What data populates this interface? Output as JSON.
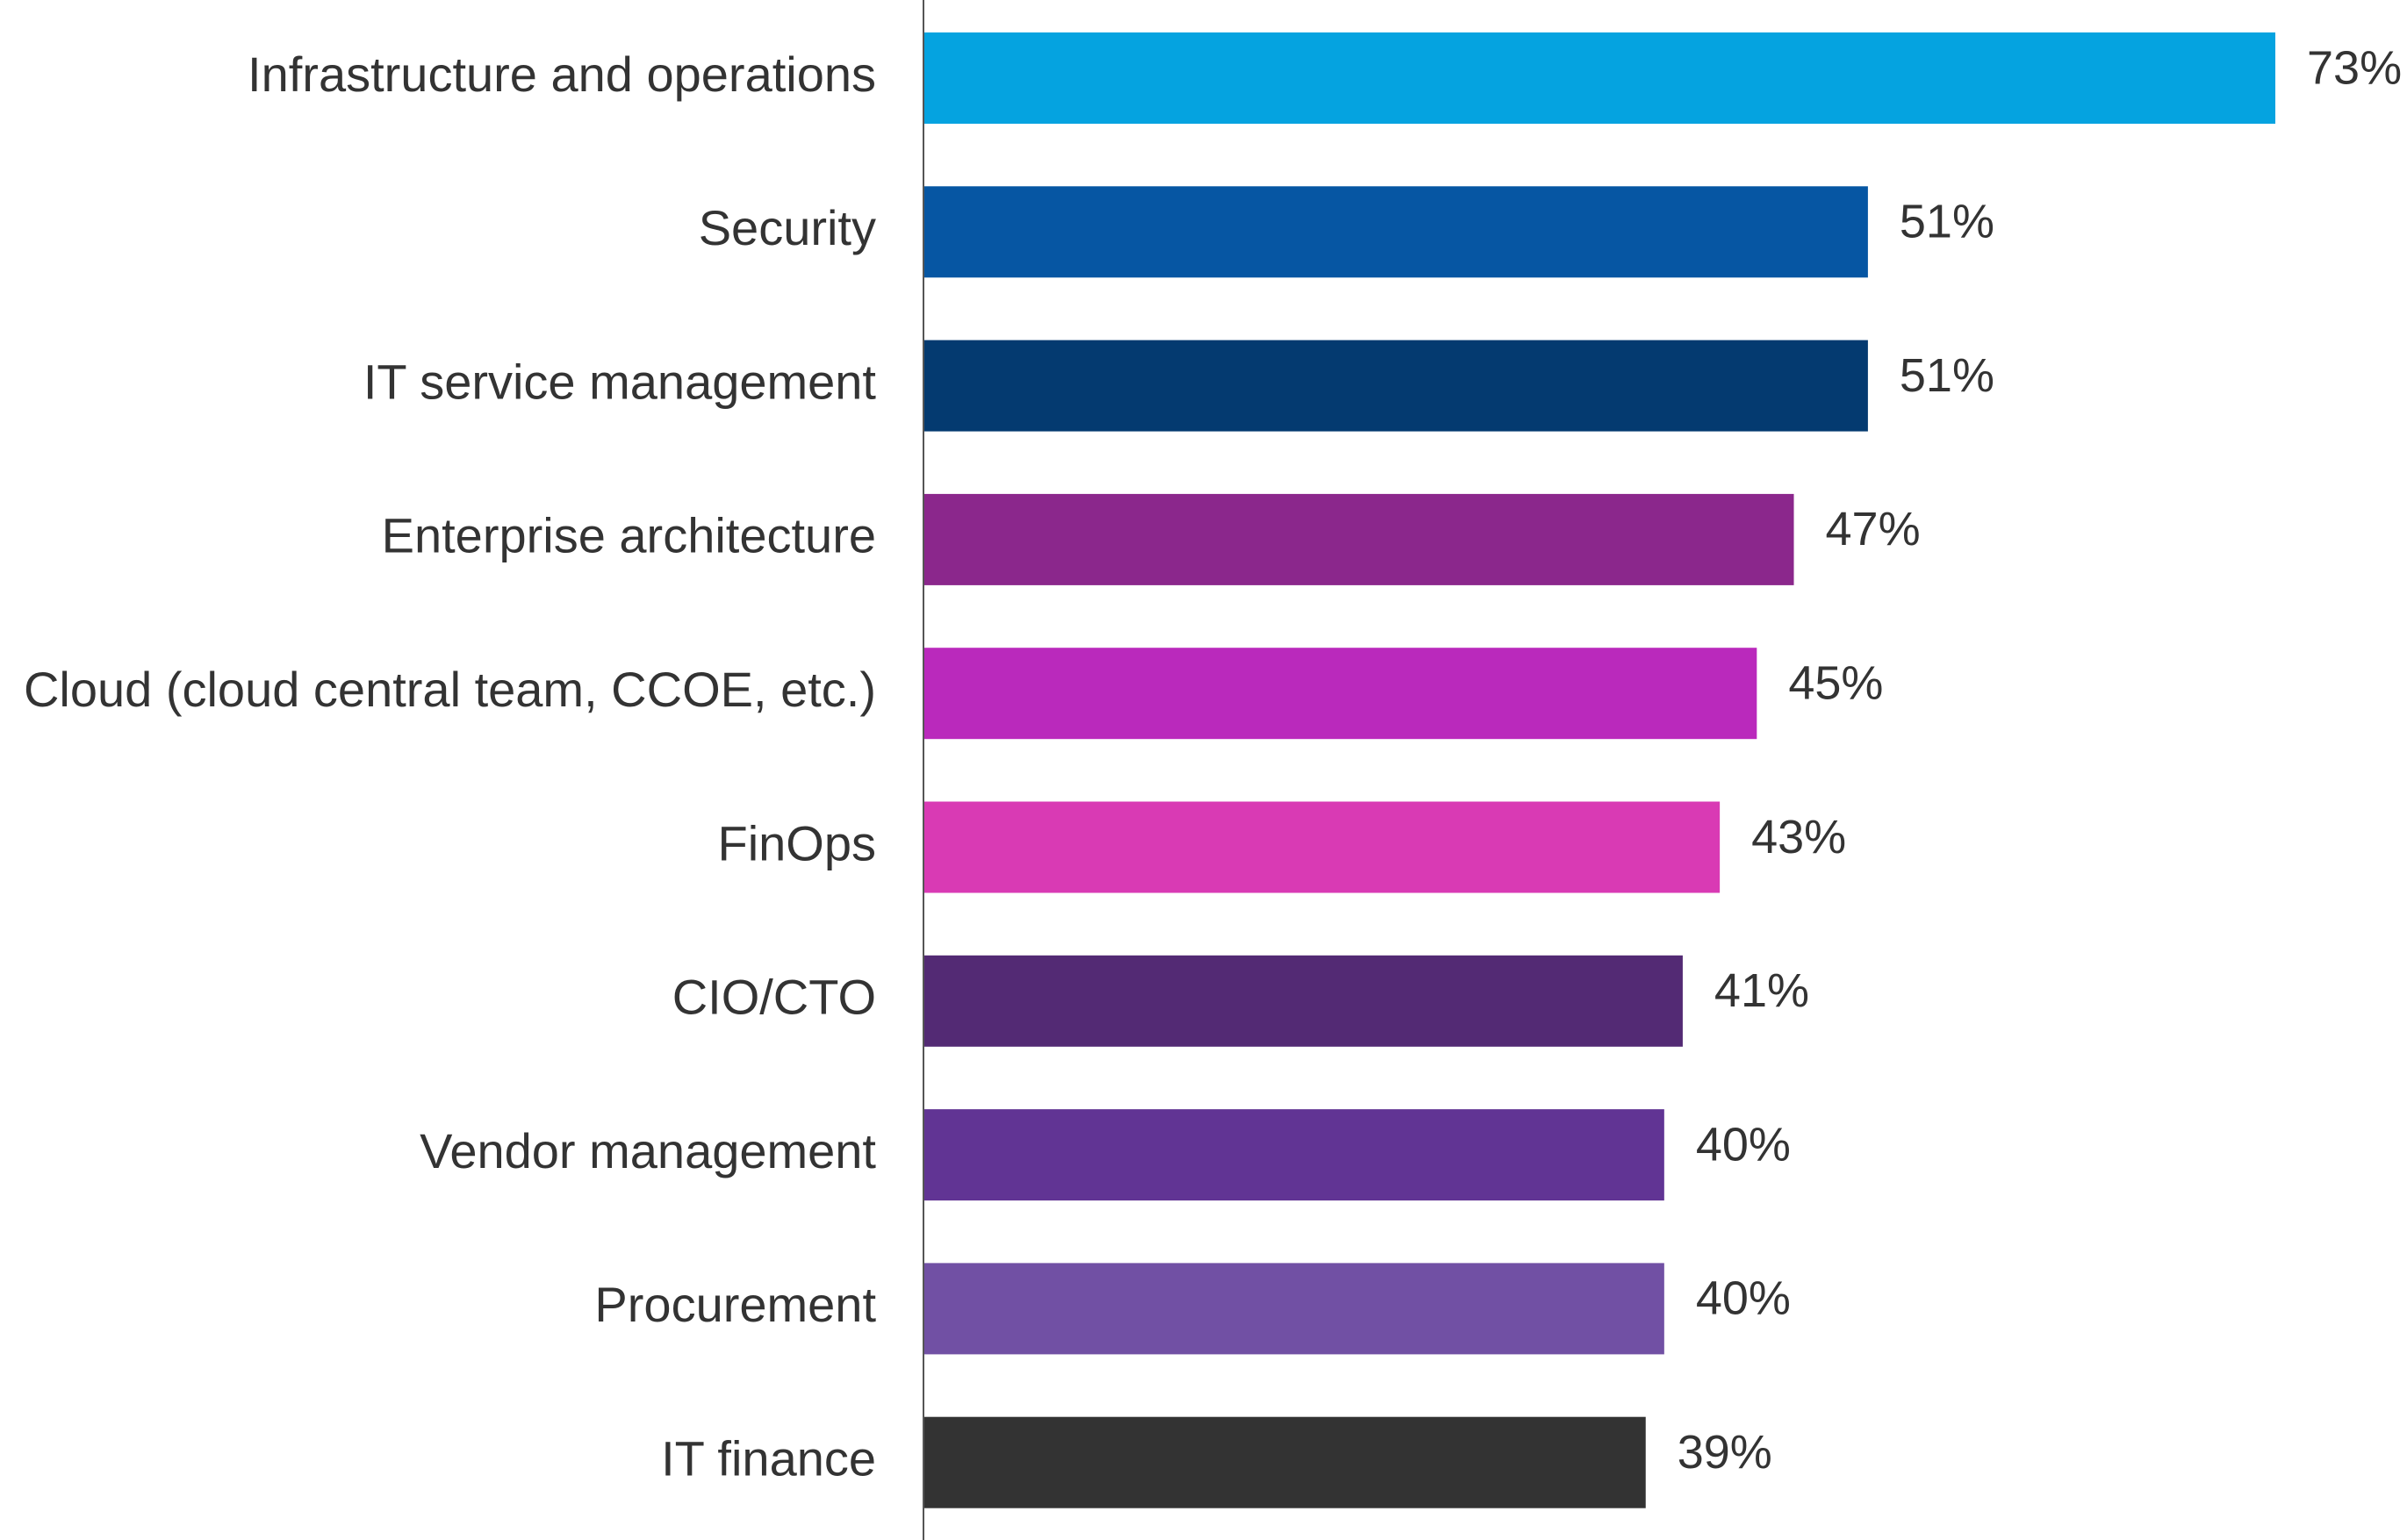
{
  "chart_data": {
    "type": "bar",
    "orientation": "horizontal",
    "title": "",
    "xlabel": "",
    "ylabel": "",
    "xlim": [
      0,
      73
    ],
    "grid": false,
    "legend": "none",
    "value_suffix": "%",
    "categories": [
      "Infrastructure and operations",
      "Security",
      "IT service management",
      "Enterprise architecture",
      "Cloud (cloud central team, CCOE, etc.)",
      "FinOps",
      "CIO/CTO",
      "Vendor management",
      "Procurement",
      "IT finance"
    ],
    "values": [
      73,
      51,
      51,
      47,
      45,
      43,
      41,
      40,
      40,
      39
    ],
    "colors": [
      "#05A3E0",
      "#0656A3",
      "#043A70",
      "#8B278C",
      "#BA29BC",
      "#D93AB4",
      "#532A74",
      "#613494",
      "#7150A4",
      "#333333"
    ],
    "axis_color": "#555555"
  }
}
